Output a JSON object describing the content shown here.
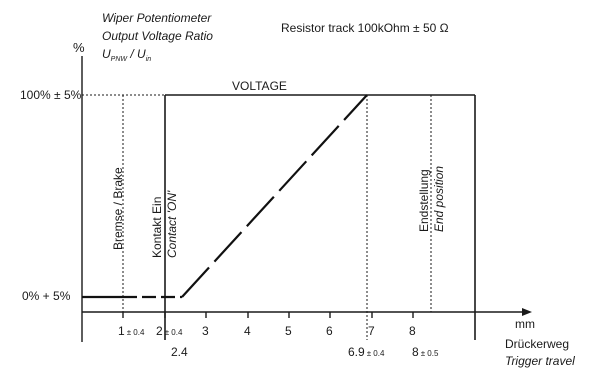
{
  "y_axis": {
    "unit": "%",
    "title_line1": "Wiper Potentiometer",
    "title_line2": "Output Voltage Ratio",
    "ratio_u": "U",
    "ratio_u_sub": "PNW",
    "ratio_div": " / U",
    "ratio_in_sub": "in",
    "tick_top": "100% ± 5%",
    "tick_bottom": "0% + 5%"
  },
  "resistor_note": "Resistor track 100kOhm ± 50 Ω",
  "band_label": "VOLTAGE",
  "x_axis": {
    "unit": "mm",
    "label_de": "Drückerweg",
    "label_en": "Trigger travel",
    "ticks": [
      {
        "main": "1",
        "tol": "± 0.4"
      },
      {
        "main": "2",
        "tol": "± 0.4"
      },
      {
        "main": "3",
        "tol": ""
      },
      {
        "main": "4",
        "tol": ""
      },
      {
        "main": "5",
        "tol": ""
      },
      {
        "main": "6",
        "tol": ""
      },
      {
        "main": "7",
        "tol": ""
      },
      {
        "main": "8",
        "tol": ""
      }
    ],
    "sub_2": "2.4",
    "sub_69": "6.9",
    "sub_69_tol": "± 0.4",
    "sub_8": "8",
    "sub_8_tol": "± 0.5"
  },
  "annotations": {
    "brake": "Bremse / Brake",
    "contact_de": "Kontakt  Ein",
    "contact_en": "Contact 'ON'",
    "end_de": "Endstellung",
    "end_en": "End position"
  }
}
